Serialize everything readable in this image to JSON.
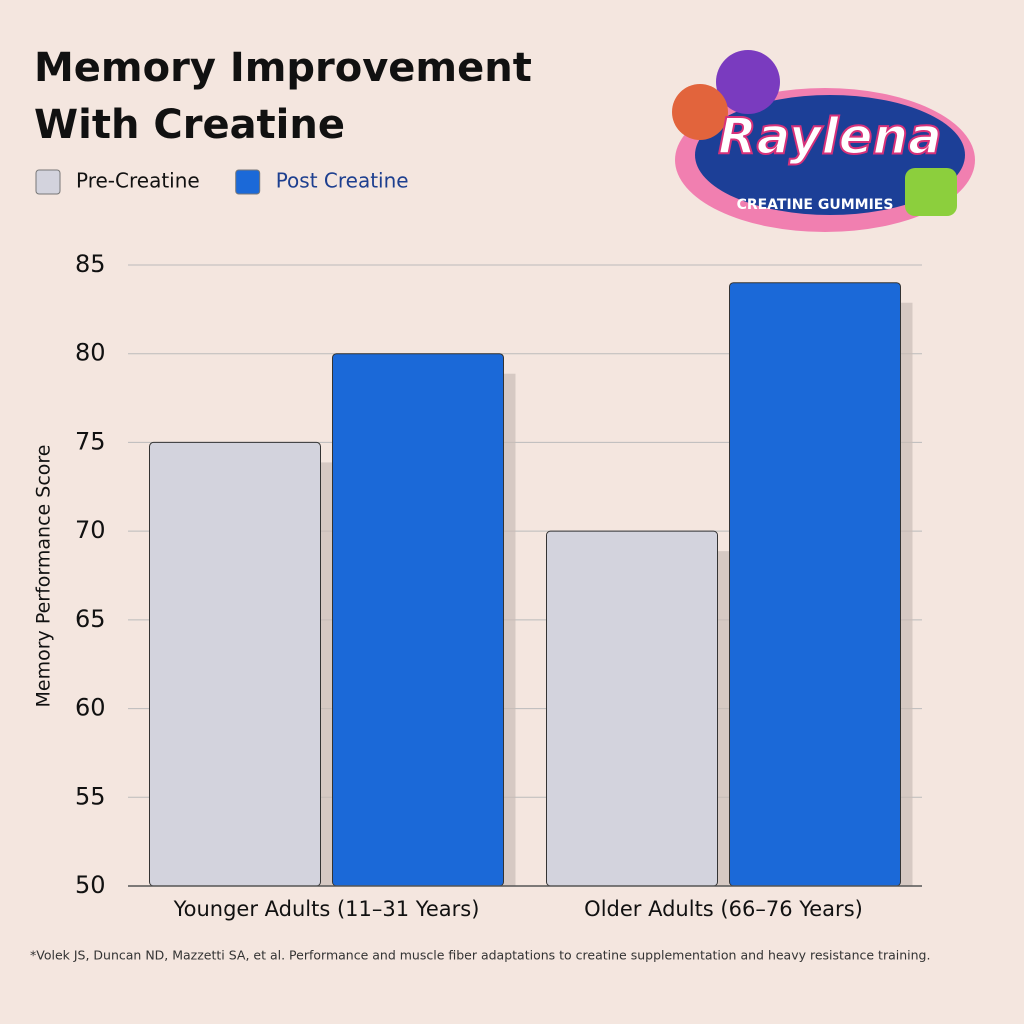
{
  "chart_data": {
    "type": "bar",
    "title": "Memory Improvement With Creatine",
    "y_label": "Memory Performance Score",
    "categories": [
      "Younger Adults (11–31 Years)",
      "Older Adults (66–76 Years)"
    ],
    "series": [
      {
        "name": "Pre-Creatine",
        "color": "#d3d3dd",
        "values": [
          75,
          70
        ]
      },
      {
        "name": "Post Creatine",
        "color": "#1b69d8",
        "values": [
          80,
          84
        ]
      }
    ],
    "ylim": [
      50,
      85
    ],
    "yticks": [
      50,
      55,
      60,
      65,
      70,
      75,
      80,
      85
    ],
    "grid": true,
    "legend": "top-left",
    "footnote": "*Volek JS, Duncan ND, Mazzetti SA, et al. Performance and muscle fiber adaptations to creatine supplementation and heavy resistance training."
  },
  "logo": {
    "brand": "Raylena",
    "tagline": "CREATINE GUMMIES"
  }
}
